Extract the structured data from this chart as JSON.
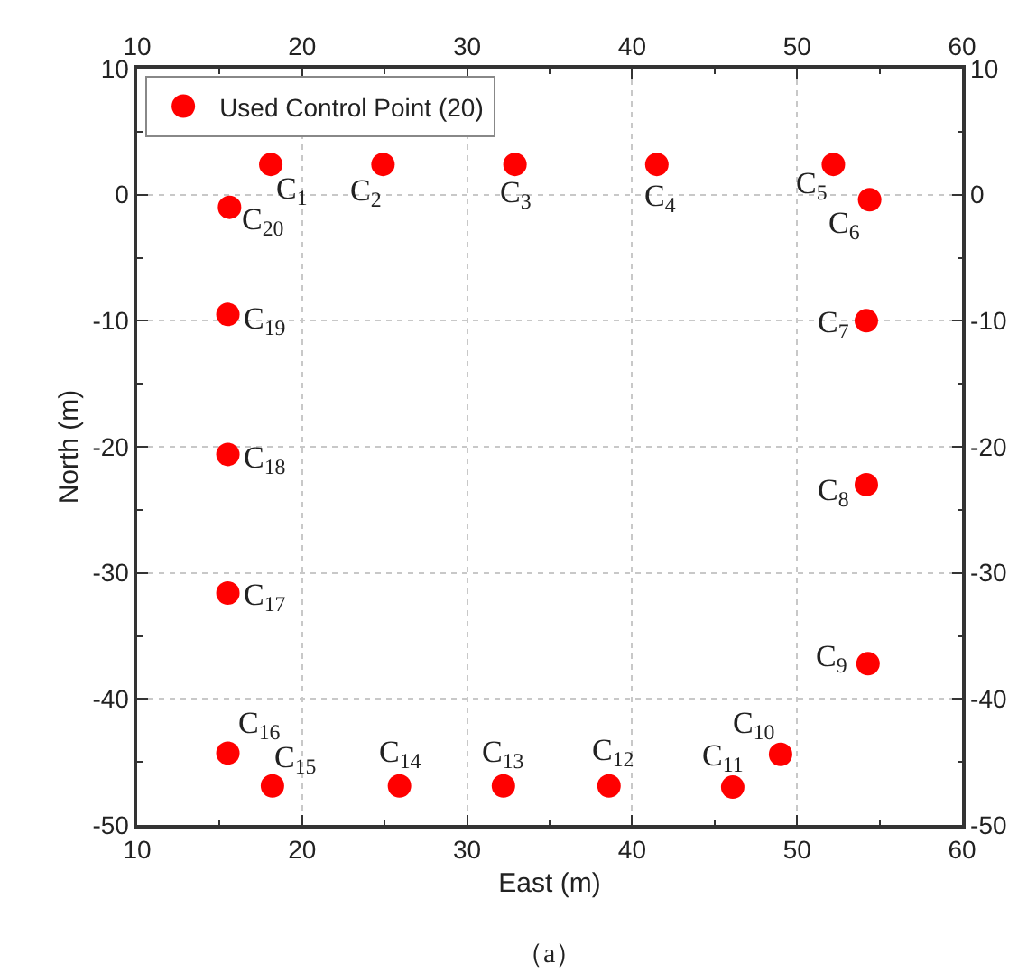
{
  "chart_data": {
    "type": "scatter",
    "xlabel": "East (m)",
    "ylabel": "North (m)",
    "x": [
      18.1,
      24.9,
      32.9,
      41.5,
      52.2,
      54.4,
      54.2,
      54.2,
      54.3,
      49.0,
      46.1,
      38.6,
      32.2,
      25.9,
      18.2,
      15.5,
      15.5,
      15.5,
      15.5,
      15.6
    ],
    "series": [
      {
        "name": "Used Control Point (20)",
        "color": "#ff0000",
        "values": [
          2.4,
          2.4,
          2.4,
          2.4,
          2.4,
          -0.4,
          -10.0,
          -23.0,
          -37.2,
          -44.4,
          -47.0,
          -46.9,
          -46.9,
          -46.9,
          -46.9,
          -44.3,
          -31.6,
          -20.6,
          -9.5,
          -1.0
        ]
      }
    ],
    "xlim": [
      10,
      60
    ],
    "xticks": [
      10,
      {
        "value": 15,
        "label": null
      },
      20,
      {
        "value": 25,
        "label": null
      },
      30,
      {
        "value": 35,
        "label": null
      },
      40,
      {
        "value": 45,
        "label": null
      },
      50,
      {
        "value": 55,
        "label": null
      },
      60
    ],
    "x2lim": [
      10,
      60
    ],
    "x2ticks": [
      10,
      {
        "value": 15,
        "label": null
      },
      20,
      {
        "value": 25,
        "label": null
      },
      30,
      {
        "value": 35,
        "label": null
      },
      40,
      {
        "value": 45,
        "label": null
      },
      50,
      {
        "value": 55,
        "label": null
      },
      60
    ],
    "ylim": [
      -50,
      10
    ],
    "yticks": [
      -50,
      {
        "value": -45,
        "label": null
      },
      -40,
      {
        "value": -35,
        "label": null
      },
      -30,
      {
        "value": -25,
        "label": null
      },
      -20,
      {
        "value": -15,
        "label": null
      },
      -10,
      {
        "value": -5,
        "label": null
      },
      0,
      {
        "value": 5,
        "label": null
      },
      10
    ],
    "y2lim": [
      -50,
      10
    ],
    "y2ticks": [
      -50,
      {
        "value": -45,
        "label": null
      },
      -40,
      {
        "value": -35,
        "label": null
      },
      -30,
      {
        "value": -25,
        "label": null
      },
      -20,
      {
        "value": -15,
        "label": null
      },
      -10,
      {
        "value": -5,
        "label": null
      },
      0,
      {
        "value": 5,
        "label": null
      },
      10
    ],
    "grid": true,
    "legend": "top left",
    "marker": "circle",
    "annotations": [
      {
        "text": "C$_{1}$",
        "x": 18.1,
        "y": 2.4
      },
      {
        "text": "C$_{2}$",
        "x": 24.9,
        "y": 2.4
      },
      {
        "text": "C$_{3}$",
        "x": 32.9,
        "y": 2.4
      },
      {
        "text": "C$_{4}$",
        "x": 41.5,
        "y": 2.4
      },
      {
        "text": "C$_{5}$",
        "x": 52.2,
        "y": 2.4
      },
      {
        "text": "C$_{6}$",
        "x": 54.4,
        "y": -0.4
      },
      {
        "text": "C$_{7}$",
        "x": 54.2,
        "y": -10.0
      },
      {
        "text": "C$_{8}$",
        "x": 54.2,
        "y": -23.0
      },
      {
        "text": "C$_{9}$",
        "x": 54.3,
        "y": -37.2
      },
      {
        "text": "C$_{10}$",
        "x": 49.0,
        "y": -44.4
      },
      {
        "text": "C$_{11}$",
        "x": 46.1,
        "y": -47.0
      },
      {
        "text": "C$_{12}$",
        "x": 38.6,
        "y": -46.9
      },
      {
        "text": "C$_{13}$",
        "x": 32.2,
        "y": -46.9
      },
      {
        "text": "C$_{14}$",
        "x": 25.9,
        "y": -46.9
      },
      {
        "text": "C$_{15}$",
        "x": 18.2,
        "y": -46.9
      },
      {
        "text": "C$_{16}$",
        "x": 15.5,
        "y": -44.3
      },
      {
        "text": "C$_{17}$",
        "x": 15.5,
        "y": -31.6
      },
      {
        "text": "C$_{18}$",
        "x": 15.5,
        "y": -20.6
      },
      {
        "text": "C$_{19}$",
        "x": 15.5,
        "y": -9.5
      },
      {
        "text": "C$_{20}$",
        "x": 15.6,
        "y": -1.0
      },
      "（a）"
    ]
  }
}
